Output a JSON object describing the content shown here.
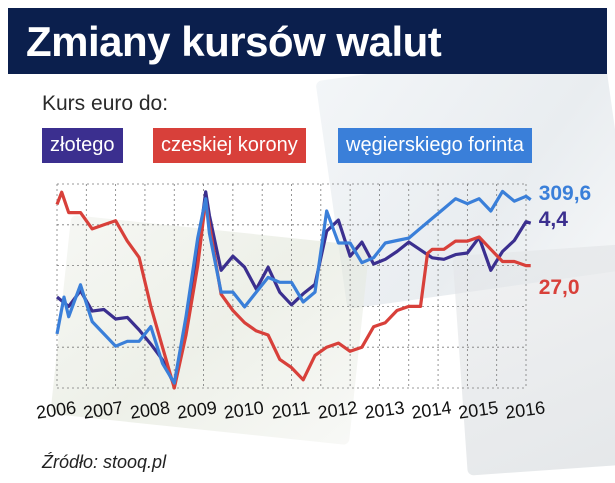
{
  "title": "Zmiany kursów walut",
  "subtitle": "Kurs euro do:",
  "source": "Źródło: stooq.pl",
  "legend": [
    {
      "label": "złotego",
      "color": "#3b2f8f"
    },
    {
      "label": "czeskiej korony",
      "color": "#d8403a"
    },
    {
      "label": "węgierskiego forinta",
      "color": "#3a7fd9"
    }
  ],
  "chart_data": {
    "type": "line",
    "x_ticks": [
      "2006",
      "2007",
      "2008",
      "2009",
      "2010",
      "2011",
      "2012",
      "2013",
      "2014",
      "2015",
      "2016"
    ],
    "grid": true,
    "series": [
      {
        "name": "złotego",
        "color": "#3b2f8f",
        "end_label": "4,4",
        "x": [
          2006.0,
          2006.25,
          2006.5,
          2006.75,
          2007.0,
          2007.25,
          2007.5,
          2007.75,
          2008.0,
          2008.25,
          2008.5,
          2008.75,
          2009.0,
          2009.17,
          2009.25,
          2009.5,
          2009.75,
          2010.0,
          2010.25,
          2010.5,
          2010.75,
          2011.0,
          2011.25,
          2011.5,
          2011.75,
          2012.0,
          2012.25,
          2012.5,
          2012.75,
          2013.0,
          2013.25,
          2013.5,
          2013.75,
          2014.0,
          2014.25,
          2014.5,
          2014.75,
          2015.0,
          2015.25,
          2015.5,
          2015.75,
          2016.0,
          2016.1
        ],
        "values": [
          3.93,
          3.87,
          3.97,
          3.84,
          3.85,
          3.79,
          3.8,
          3.72,
          3.63,
          3.53,
          3.37,
          3.72,
          4.21,
          4.6,
          4.45,
          4.1,
          4.19,
          4.12,
          3.98,
          4.12,
          3.96,
          3.88,
          3.95,
          4.01,
          4.35,
          4.42,
          4.19,
          4.28,
          4.14,
          4.17,
          4.22,
          4.28,
          4.23,
          4.18,
          4.17,
          4.2,
          4.21,
          4.31,
          4.1,
          4.22,
          4.29,
          4.41,
          4.4
        ]
      },
      {
        "name": "czeskiej korony",
        "color": "#d8403a",
        "end_label": "27,0",
        "x": [
          2006.0,
          2006.1,
          2006.25,
          2006.5,
          2006.75,
          2007.0,
          2007.25,
          2007.5,
          2007.75,
          2008.0,
          2008.25,
          2008.5,
          2008.75,
          2009.0,
          2009.17,
          2009.25,
          2009.5,
          2009.75,
          2010.0,
          2010.25,
          2010.5,
          2010.75,
          2011.0,
          2011.25,
          2011.5,
          2011.75,
          2012.0,
          2012.25,
          2012.5,
          2012.75,
          2013.0,
          2013.25,
          2013.5,
          2013.75,
          2013.9,
          2014.0,
          2014.25,
          2014.5,
          2014.75,
          2015.0,
          2015.25,
          2015.5,
          2015.75,
          2016.0,
          2016.1
        ],
        "values": [
          28.5,
          28.8,
          28.3,
          28.3,
          27.9,
          28.0,
          28.1,
          27.6,
          27.2,
          26.0,
          25.0,
          24.0,
          25.3,
          27.0,
          28.6,
          28.0,
          26.3,
          25.9,
          25.6,
          25.4,
          25.3,
          24.7,
          24.5,
          24.2,
          24.8,
          25.0,
          25.1,
          24.9,
          25.0,
          25.5,
          25.6,
          25.9,
          26.0,
          26.0,
          27.3,
          27.4,
          27.4,
          27.6,
          27.6,
          27.7,
          27.4,
          27.1,
          27.1,
          27.0,
          27.0
        ]
      },
      {
        "name": "węgierskiego forinta",
        "color": "#3a7fd9",
        "end_label": "309,6",
        "x": [
          2006.0,
          2006.15,
          2006.25,
          2006.5,
          2006.75,
          2007.0,
          2007.25,
          2007.5,
          2007.75,
          2008.0,
          2008.25,
          2008.5,
          2008.75,
          2009.0,
          2009.17,
          2009.25,
          2009.5,
          2009.75,
          2010.0,
          2010.25,
          2010.5,
          2010.75,
          2011.0,
          2011.25,
          2011.5,
          2011.75,
          2012.0,
          2012.25,
          2012.5,
          2012.75,
          2013.0,
          2013.25,
          2013.5,
          2013.75,
          2014.0,
          2014.25,
          2014.5,
          2014.75,
          2015.0,
          2015.25,
          2015.5,
          2015.75,
          2016.0,
          2016.1
        ],
        "values": [
          255.0,
          270.0,
          262.0,
          275.0,
          260.0,
          255.0,
          250.0,
          252.0,
          252.0,
          258.0,
          243.0,
          235.0,
          262.0,
          294.0,
          310.0,
          296.0,
          272.0,
          272.0,
          266.0,
          272.0,
          278.0,
          276.0,
          276.0,
          268.0,
          272.0,
          305.0,
          292.0,
          292.0,
          284.0,
          286.0,
          292.0,
          293.0,
          294.0,
          298.0,
          302.0,
          306.0,
          310.0,
          308.0,
          310.0,
          305.0,
          313.0,
          309.0,
          311.0,
          309.6
        ]
      }
    ]
  }
}
